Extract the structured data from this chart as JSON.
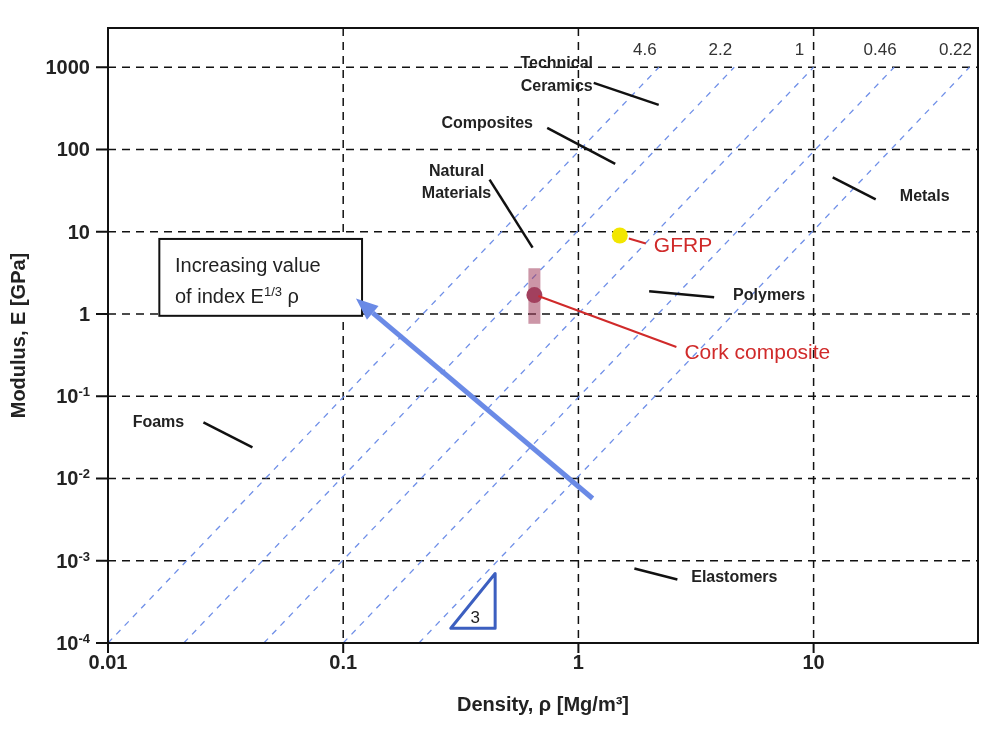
{
  "chart_data": {
    "type": "scatter",
    "xlabel": "Density, ρ [Mg/m³]",
    "ylabel": "Modulus, E [GPa]",
    "log": "xy",
    "grid": true,
    "xlim": [
      0.01,
      50
    ],
    "xticks": [
      0.01,
      0.1,
      1,
      10
    ],
    "ylim": [
      0.0001,
      3000
    ],
    "yticks": [
      {
        "value": 0.0001,
        "label": "10$^{-4}$"
      },
      {
        "value": 0.001,
        "label": "10$^{-3}$"
      },
      {
        "value": 0.01,
        "label": "10$^{-2}$"
      },
      {
        "value": 0.1,
        "label": "10$^{-1}$"
      },
      1,
      10,
      100,
      1000
    ],
    "series": [
      {
        "name": "4.6",
        "type": "line",
        "line_style": "dashed",
        "marker": "none",
        "color": "#6f8fe8",
        "x": [
          0.01,
          2.2
        ],
        "values": [
          0.0001,
          1000
        ]
      },
      {
        "name": "2.2",
        "type": "line",
        "line_style": "dashed",
        "marker": "none",
        "color": "#6f8fe8",
        "x": [
          0.021,
          4.6
        ],
        "values": [
          0.0001,
          1000
        ]
      },
      {
        "name": "1",
        "type": "line",
        "line_style": "dashed",
        "marker": "none",
        "color": "#6f8fe8",
        "x": [
          0.046,
          10
        ],
        "values": [
          0.0001,
          1000
        ]
      },
      {
        "name": "0.46",
        "type": "line",
        "line_style": "dashed",
        "marker": "none",
        "color": "#6f8fe8",
        "x": [
          0.1,
          22
        ],
        "values": [
          0.0001,
          1000
        ]
      },
      {
        "name": "0.22",
        "type": "line",
        "line_style": "dashed",
        "marker": "none",
        "color": "#6f8fe8",
        "x": [
          0.21,
          46
        ],
        "values": [
          0.0001,
          1000
        ]
      },
      {
        "name": "GFRP",
        "type": "scatter",
        "marker": "circle",
        "color": "#f2e600",
        "x": [
          1.5
        ],
        "values": [
          9
        ]
      },
      {
        "name": "Cork composite",
        "type": "scatter",
        "marker": "circle",
        "color": "#a3405e",
        "x": [
          0.65
        ],
        "values": [
          1.7
        ],
        "errors": [
          [
            0.76,
            3.6
          ]
        ]
      }
    ],
    "annotations": [
      "Technical Ceramics",
      "Composites",
      "Natural Materials",
      "Metals",
      "Polymers",
      "Foams",
      "Elastomers",
      "Increasing value of index E$^{1/3}$ ρ",
      "3"
    ]
  }
}
